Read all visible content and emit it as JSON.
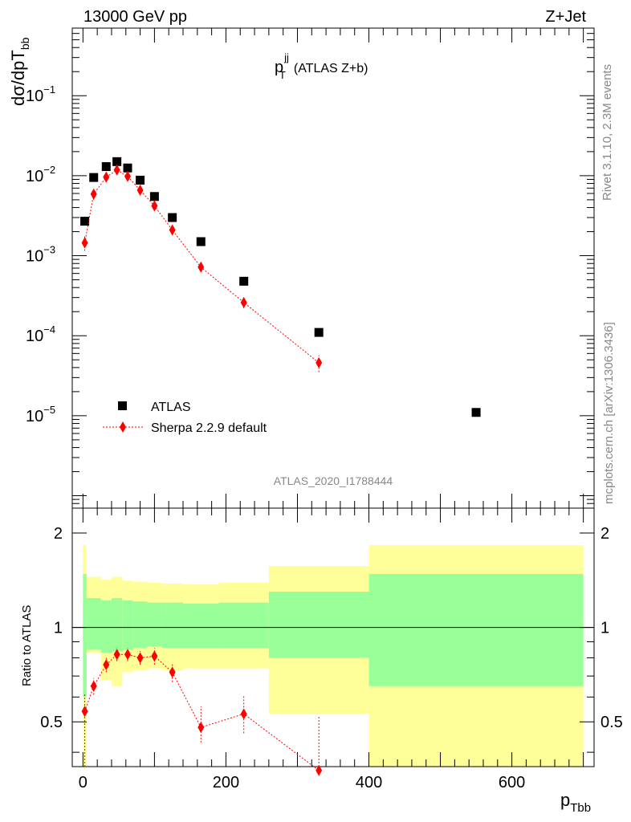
{
  "header": {
    "left": "13000 GeV pp",
    "right": "Z+Jet"
  },
  "side_labels": {
    "rivet": "Rivet 3.1.10,  2.3M events",
    "mcplots": "mcplots.cern.ch [arXiv:1306.3436]"
  },
  "analysis_id": "ATLAS_2020_I1788444",
  "chart_data": [
    {
      "type": "scatter",
      "panel": "main",
      "title_main": "p",
      "title_sup": "jj",
      "title_sub": "T",
      "title_suffix": "(ATLAS Z+b)",
      "ylabel": "dσ/dpT",
      "ylabel_sub": "bb",
      "yscale": "log",
      "ylim": [
        7e-07,
        0.7
      ],
      "xlim": [
        -15,
        715
      ],
      "y_ticks": [
        {
          "value": 0.1,
          "base": "10",
          "exp": "−1"
        },
        {
          "value": 0.01,
          "base": "10",
          "exp": "−2"
        },
        {
          "value": 0.001,
          "base": "10",
          "exp": "−3"
        },
        {
          "value": 0.0001,
          "base": "10",
          "exp": "−4"
        },
        {
          "value": 1e-05,
          "base": "10",
          "exp": "−5"
        }
      ],
      "legend_position": "lower-left",
      "series": [
        {
          "name": "ATLAS",
          "marker": "square",
          "color": "#000000",
          "x": [
            2.5,
            15,
            32.5,
            47.5,
            62.5,
            80,
            100,
            125,
            165,
            225,
            330,
            550
          ],
          "y": [
            0.0027,
            0.0095,
            0.013,
            0.015,
            0.0125,
            0.0088,
            0.0055,
            0.003,
            0.0015,
            0.00048,
            0.00011,
            1.1e-05
          ]
        },
        {
          "name": "Sherpa 2.2.9 default",
          "marker": "diamond",
          "line": "dotted",
          "color": "#ff0000",
          "x": [
            2.5,
            15,
            32.5,
            47.5,
            62.5,
            80,
            100,
            125,
            165,
            225,
            330
          ],
          "y": [
            0.00145,
            0.0059,
            0.0096,
            0.0118,
            0.0098,
            0.0066,
            0.0042,
            0.0021,
            0.00072,
            0.00026,
            4.6e-05
          ],
          "err_lo": [
            0.00115,
            0.005,
            0.0085,
            0.0105,
            0.0088,
            0.006,
            0.0038,
            0.0019,
            0.00066,
            0.00022,
            3.5e-05
          ],
          "err_hi": [
            0.0018,
            0.0068,
            0.0108,
            0.013,
            0.0108,
            0.0073,
            0.0047,
            0.0023,
            0.00078,
            0.0003,
            5.7e-05
          ]
        }
      ]
    },
    {
      "type": "area",
      "panel": "ratio",
      "ylabel": "Ratio to ATLAS",
      "xlabel": "p",
      "xlabel_sub": "Tbb",
      "yscale": "log",
      "ylim": [
        0.36,
        2.4
      ],
      "y_ticks": [
        {
          "value": 2,
          "label": "2"
        },
        {
          "value": 1,
          "label": "1"
        },
        {
          "value": 0.5,
          "label": "0.5"
        }
      ],
      "x_ticks": [
        {
          "value": 0,
          "label": "0"
        },
        {
          "value": 200,
          "label": "200"
        },
        {
          "value": 400,
          "label": "400"
        },
        {
          "value": 600,
          "label": "600"
        }
      ],
      "reference_line": 1,
      "bands": {
        "bin_edges": [
          0,
          5,
          25,
          40,
          55,
          70,
          90,
          110,
          140,
          190,
          260,
          400,
          700
        ],
        "yellow_lo": [
          0.2,
          0.83,
          0.68,
          0.65,
          0.72,
          0.73,
          0.74,
          0.73,
          0.74,
          0.74,
          0.53,
          0.2
        ],
        "yellow_hi": [
          1.83,
          1.45,
          1.42,
          1.45,
          1.41,
          1.4,
          1.39,
          1.38,
          1.37,
          1.39,
          1.57,
          1.83
        ],
        "green_lo": [
          0.6,
          0.85,
          0.83,
          0.84,
          0.85,
          0.86,
          0.87,
          0.86,
          0.86,
          0.86,
          0.8,
          0.65
        ],
        "green_hi": [
          1.48,
          1.24,
          1.22,
          1.24,
          1.22,
          1.21,
          1.2,
          1.2,
          1.19,
          1.2,
          1.3,
          1.48
        ],
        "colors": {
          "yellow": "#ffff99",
          "green": "#99ff99"
        }
      },
      "series": [
        {
          "name": "Sherpa 2.2.9 default",
          "color": "#ff0000",
          "x": [
            2.5,
            15,
            32.5,
            47.5,
            62.5,
            80,
            100,
            125,
            165,
            225,
            330
          ],
          "y": [
            0.54,
            0.65,
            0.76,
            0.82,
            0.82,
            0.8,
            0.81,
            0.72,
            0.48,
            0.53,
            0.35
          ],
          "err_lo": [
            0.36,
            0.61,
            0.72,
            0.78,
            0.78,
            0.76,
            0.76,
            0.67,
            0.43,
            0.46,
            0.3
          ],
          "err_hi": [
            0.62,
            0.69,
            0.8,
            0.86,
            0.86,
            0.84,
            0.86,
            0.77,
            0.56,
            0.61,
            0.52
          ]
        }
      ]
    }
  ]
}
